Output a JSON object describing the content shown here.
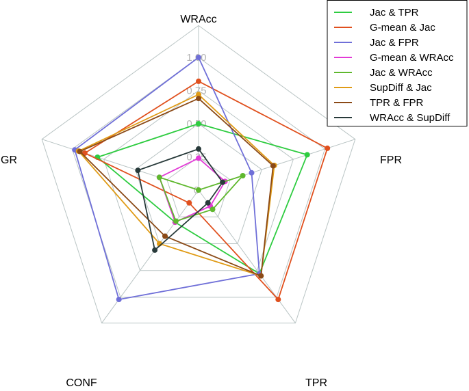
{
  "chart_data": {
    "type": "radar",
    "axes": [
      "WRAcc",
      "FPR",
      "TPR",
      "CONF",
      "GR"
    ],
    "ticks": [
      "0",
      "0.25",
      "0.50",
      "0.75",
      "1.00"
    ],
    "rlim": [
      0,
      1
    ],
    "legend_position": "top-right",
    "series": [
      {
        "name": "Jac & TPR",
        "color": "#2ecc40",
        "values": [
          0.5,
          0.86,
          0.78,
          0.3,
          0.8
        ]
      },
      {
        "name": "G-mean & Jac",
        "color": "#e0501e",
        "values": [
          0.82,
          1.02,
          1.02,
          0.12,
          0.9
        ]
      },
      {
        "name": "Jac & FPR",
        "color": "#6f6fd8",
        "values": [
          1.0,
          0.42,
          0.78,
          1.02,
          0.98
        ]
      },
      {
        "name": "G-mean & WRAcc",
        "color": "#e23ad6",
        "values": [
          0.24,
          0.21,
          0.15,
          0.3,
          0.31
        ]
      },
      {
        "name": "Jac & WRAcc",
        "color": "#5fb82e",
        "values": [
          0.0,
          0.35,
          0.18,
          0.29,
          0.31
        ]
      },
      {
        "name": "SupDiff & Jac",
        "color": "#e09b16",
        "values": [
          0.72,
          0.6,
          0.8,
          0.5,
          0.95
        ]
      },
      {
        "name": "TPR & FPR",
        "color": "#8b4a17",
        "values": [
          0.69,
          0.59,
          0.8,
          0.43,
          0.94
        ]
      },
      {
        "name": "WRAcc & SupDiff",
        "color": "#283a3a",
        "values": [
          0.31,
          0.19,
          0.12,
          0.56,
          0.48
        ]
      }
    ]
  }
}
